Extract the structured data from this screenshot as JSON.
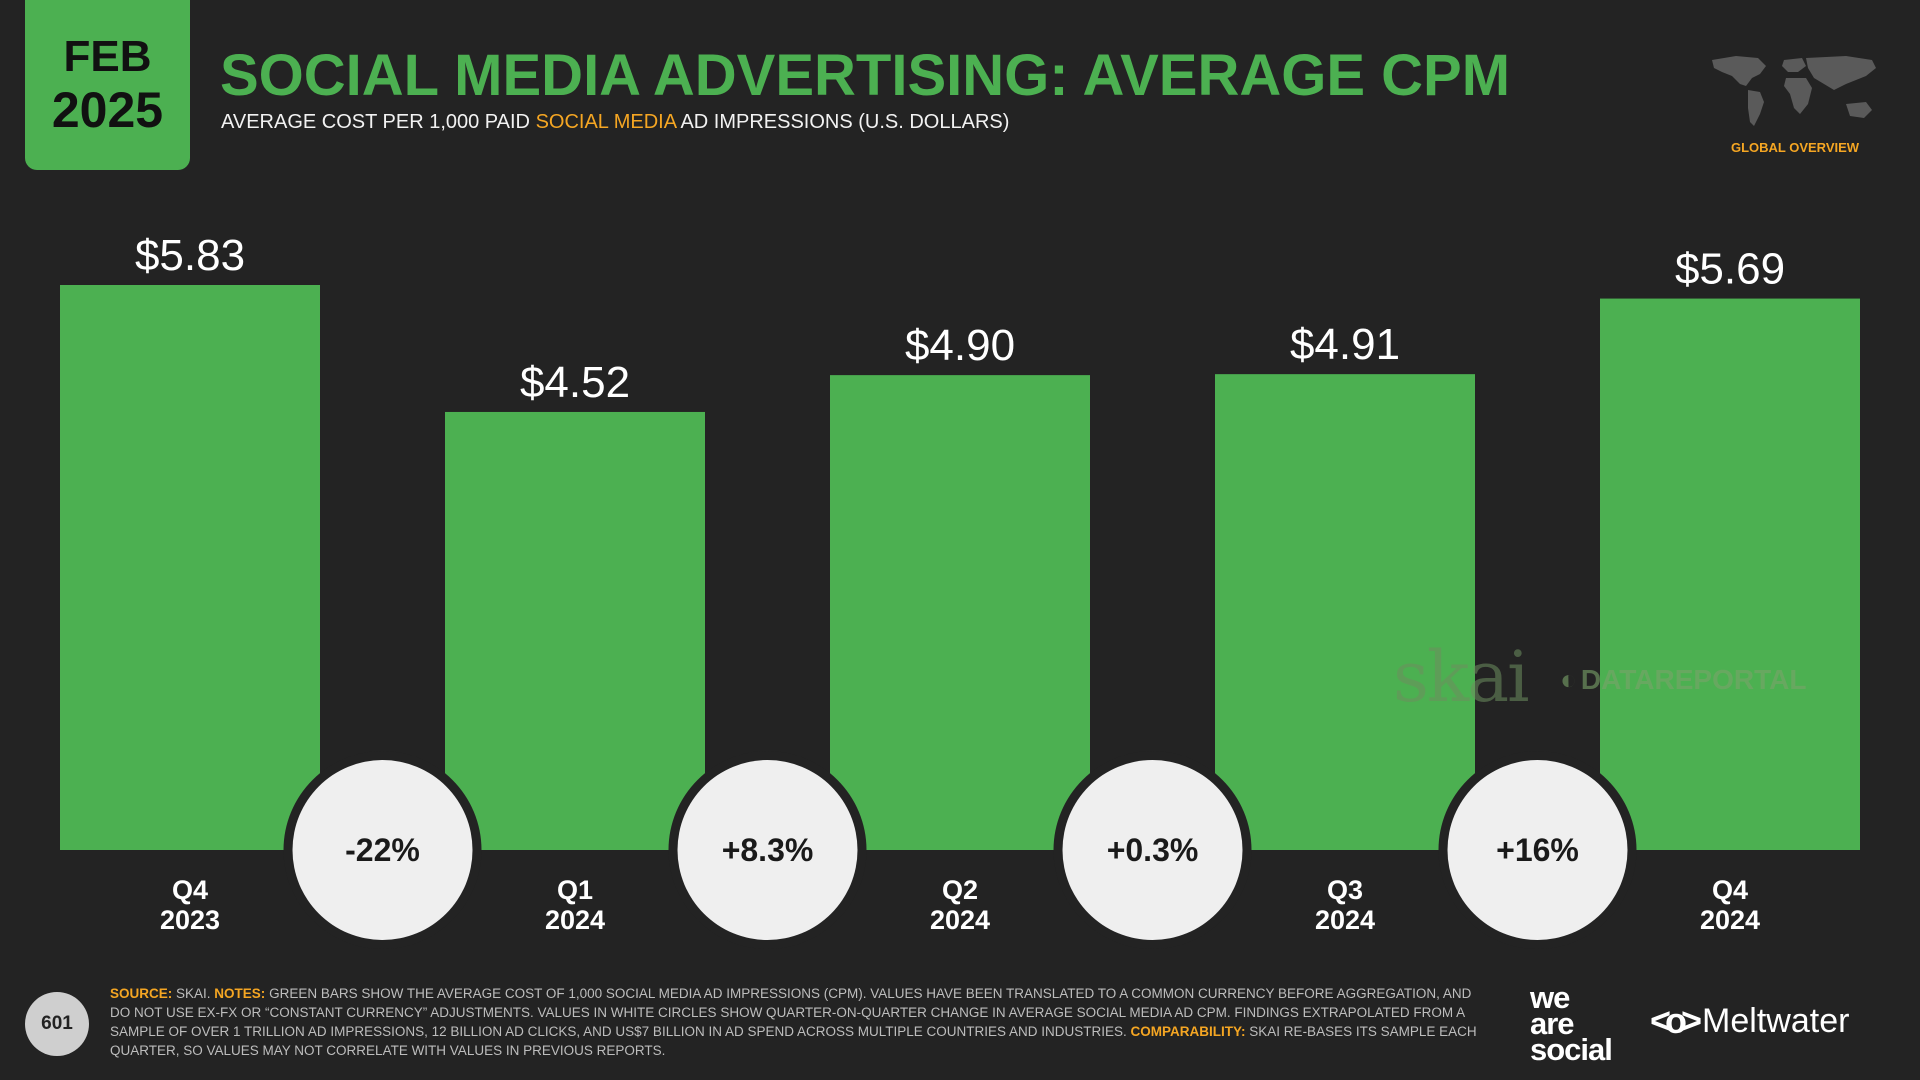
{
  "header": {
    "month": "FEB",
    "year": "2025",
    "title": "SOCIAL MEDIA ADVERTISING: AVERAGE CPM",
    "subtitle_pre": "AVERAGE COST PER 1,000 PAID ",
    "subtitle_highlight": "SOCIAL MEDIA",
    "subtitle_post": " AD IMPRESSIONS (U.S. DOLLARS)",
    "region": "GLOBAL OVERVIEW"
  },
  "colors": {
    "background": "#232323",
    "accent": "#4cb051",
    "highlight": "#f5a623",
    "circle": "#efefef"
  },
  "chart_data": {
    "type": "bar",
    "categories": [
      [
        "Q4",
        "2023"
      ],
      [
        "Q1",
        "2024"
      ],
      [
        "Q2",
        "2024"
      ],
      [
        "Q3",
        "2024"
      ],
      [
        "Q4",
        "2024"
      ]
    ],
    "values": [
      5.83,
      4.52,
      4.9,
      4.91,
      5.69
    ],
    "value_labels": [
      "$5.83",
      "$4.52",
      "$4.90",
      "$4.91",
      "$5.69"
    ],
    "changes": [
      "-22%",
      "+8.3%",
      "+0.3%",
      "+16%"
    ],
    "ylim": [
      0,
      5.83
    ],
    "title": "",
    "xlabel": "",
    "ylabel": "",
    "grid": false,
    "bar_color": "#4cb051"
  },
  "watermarks": {
    "skai": "skai",
    "datareportal": "DATAREPORTAL"
  },
  "footer": {
    "page_number": "601",
    "source_label": "SOURCE:",
    "source_text": " SKAI. ",
    "notes_label": "NOTES:",
    "notes_text": " GREEN BARS SHOW THE AVERAGE COST OF 1,000 SOCIAL MEDIA AD IMPRESSIONS (CPM). VALUES HAVE BEEN TRANSLATED TO A COMMON CURRENCY BEFORE AGGREGATION, AND DO NOT USE EX-FX OR “CONSTANT CURRENCY” ADJUSTMENTS. VALUES IN WHITE CIRCLES SHOW QUARTER-ON-QUARTER CHANGE IN AVERAGE SOCIAL MEDIA AD CPM. FINDINGS EXTRAPOLATED FROM A SAMPLE OF OVER 1 TRILLION AD IMPRESSIONS, 12 BILLION AD CLICKS, AND US$7 BILLION IN AD SPEND ACROSS MULTIPLE COUNTRIES AND INDUSTRIES. ",
    "comparability_label": "COMPARABILITY:",
    "comparability_text": " SKAI RE-BASES ITS SAMPLE EACH QUARTER, SO VALUES MAY NOT CORRELATE WITH VALUES IN PREVIOUS REPORTS.",
    "brand_we": "we",
    "brand_are": "are",
    "brand_social": "social",
    "brand_meltwater": "Meltwater"
  }
}
